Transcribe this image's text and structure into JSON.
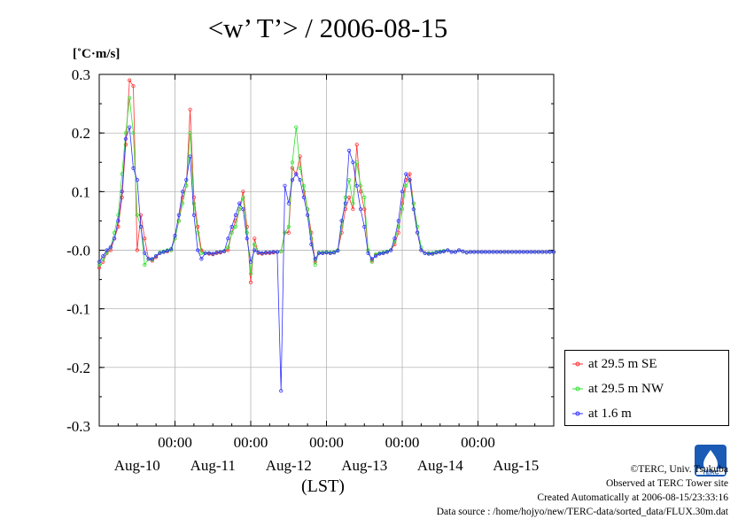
{
  "title": "<w’ T’> / 2006-08-15",
  "unit_label": "[˚C·m/s]",
  "x_unit": "(LST)",
  "credits": {
    "line1": "©TERC, Univ. Tsukuba",
    "line2": "Observed at TERC Tower site",
    "line3": "Created Automatically at 2006-08-15/23:33:16",
    "line4": "Data source : /home/hojyo/new/TERC-data/sorted_data/FLUX.30m.dat"
  },
  "logo": {
    "icon": "terc-logo-icon",
    "text": "TERC"
  },
  "colors": {
    "se": "#ff3030",
    "nw": "#30e030",
    "low": "#3030ff"
  },
  "chart_data": {
    "type": "line",
    "title": "<w’ T’> / 2006-08-15",
    "ylabel": "[˚C·m/s]",
    "xlabel": "(LST)",
    "ylim": [
      -0.3,
      0.3
    ],
    "yticks": [
      "0.3",
      "0.2",
      "0.1",
      "-0.0",
      "-0.1",
      "-0.2",
      "-0.3"
    ],
    "xlim_days": [
      0,
      6
    ],
    "x_hour_labels": [
      "00:00",
      "00:00",
      "00:00",
      "00:00",
      "00:00"
    ],
    "x_date_labels": [
      "Aug-10",
      "Aug-11",
      "Aug-12",
      "Aug-13",
      "Aug-14",
      "Aug-15"
    ],
    "grid": true,
    "legend_position": "right-bottom outside",
    "series": [
      {
        "name": "at 29.5 m SE",
        "color": "#ff3030",
        "x": [
          0,
          0.05,
          0.1,
          0.15,
          0.2,
          0.25,
          0.3,
          0.35,
          0.4,
          0.45,
          0.5,
          0.55,
          0.6,
          0.65,
          0.7,
          0.75,
          0.8,
          0.85,
          0.9,
          0.95,
          1.0,
          1.05,
          1.1,
          1.15,
          1.2,
          1.25,
          1.3,
          1.35,
          1.4,
          1.45,
          1.5,
          1.55,
          1.6,
          1.65,
          1.7,
          1.75,
          1.8,
          1.85,
          1.9,
          1.95,
          2.0,
          2.05,
          2.1,
          2.15,
          2.2,
          2.25,
          2.3,
          2.35,
          2.4,
          2.45,
          2.5,
          2.55,
          2.6,
          2.65,
          2.7,
          2.75,
          2.8,
          2.85,
          2.9,
          2.95,
          3.0,
          3.05,
          3.1,
          3.15,
          3.2,
          3.25,
          3.3,
          3.35,
          3.4,
          3.45,
          3.5,
          3.55,
          3.6,
          3.65,
          3.7,
          3.75,
          3.8,
          3.85,
          3.9,
          3.95,
          4.0,
          4.05,
          4.1,
          4.15,
          4.2,
          4.25,
          4.3,
          4.35,
          4.4,
          4.45,
          4.5,
          4.55,
          4.6,
          4.65,
          4.7,
          4.75,
          4.8,
          4.85,
          4.9,
          4.95,
          5.0,
          5.05,
          5.1,
          5.15,
          5.2,
          5.25,
          5.3,
          5.35,
          5.4,
          5.45,
          5.5,
          5.55,
          5.6,
          5.65,
          5.7,
          5.75,
          5.8,
          5.85,
          5.9,
          5.95,
          6.0
        ],
        "values": [
          -0.03,
          -0.02,
          -0.005,
          0.0,
          0.02,
          0.04,
          0.09,
          0.18,
          0.29,
          0.28,
          0.0,
          0.06,
          0.02,
          -0.015,
          -0.018,
          -0.012,
          -0.005,
          -0.003,
          -0.002,
          0.0,
          0.02,
          0.05,
          0.09,
          0.11,
          0.24,
          0.09,
          0.04,
          0.0,
          -0.005,
          -0.006,
          -0.007,
          -0.005,
          -0.004,
          -0.002,
          0.0,
          0.03,
          0.05,
          0.07,
          0.1,
          0.04,
          -0.055,
          0.02,
          -0.005,
          -0.006,
          -0.005,
          -0.005,
          -0.004,
          -0.003,
          -0.002,
          0.03,
          0.03,
          0.14,
          0.13,
          0.16,
          0.1,
          0.07,
          0.03,
          -0.02,
          -0.005,
          -0.005,
          -0.004,
          -0.005,
          -0.004,
          0.0,
          0.03,
          0.07,
          0.09,
          0.07,
          0.18,
          0.1,
          0.07,
          0.0,
          -0.018,
          -0.008,
          -0.006,
          -0.005,
          -0.003,
          0.0,
          0.01,
          0.03,
          0.08,
          0.12,
          0.13,
          0.08,
          0.03,
          0.0,
          -0.005,
          -0.006,
          -0.006,
          -0.004,
          -0.003,
          -0.002,
          0.0,
          -0.003,
          -0.003,
          0.0,
          -0.002,
          -0.004,
          -0.003,
          -0.003,
          -0.003,
          -0.003,
          -0.003,
          -0.003,
          -0.003,
          -0.003,
          -0.003,
          -0.003,
          -0.003,
          -0.003,
          -0.003,
          -0.003,
          -0.003,
          -0.003,
          -0.003,
          -0.003,
          -0.003,
          -0.003,
          -0.003,
          -0.003,
          -0.003
        ]
      },
      {
        "name": "at 29.5 m NW",
        "color": "#30e030",
        "x": [
          0,
          0.05,
          0.1,
          0.15,
          0.2,
          0.25,
          0.3,
          0.35,
          0.4,
          0.45,
          0.5,
          0.55,
          0.6,
          0.65,
          0.7,
          0.75,
          0.8,
          0.85,
          0.9,
          0.95,
          1.0,
          1.05,
          1.1,
          1.15,
          1.2,
          1.25,
          1.3,
          1.35,
          1.4,
          1.45,
          1.5,
          1.55,
          1.6,
          1.65,
          1.7,
          1.75,
          1.8,
          1.85,
          1.9,
          1.95,
          2.0,
          2.05,
          2.1,
          2.15,
          2.2,
          2.25,
          2.3,
          2.35,
          2.4,
          2.45,
          2.5,
          2.55,
          2.6,
          2.65,
          2.7,
          2.75,
          2.8,
          2.85,
          2.9,
          2.95,
          3.0,
          3.05,
          3.1,
          3.15,
          3.2,
          3.25,
          3.3,
          3.35,
          3.4,
          3.45,
          3.5,
          3.55,
          3.6,
          3.65,
          3.7,
          3.75,
          3.8,
          3.85,
          3.9,
          3.95,
          4.0,
          4.05,
          4.1,
          4.15,
          4.2,
          4.25,
          4.3,
          4.35,
          4.4,
          4.45,
          4.5,
          4.55,
          4.6,
          4.65,
          4.7,
          4.75,
          4.8,
          4.85,
          4.9,
          4.95,
          5.0,
          5.05,
          5.1,
          5.15,
          5.2,
          5.25,
          5.3,
          5.35,
          5.4,
          5.45,
          5.5,
          5.55,
          5.6,
          5.65,
          5.7,
          5.75,
          5.8,
          5.85,
          5.9,
          5.95,
          6.0
        ],
        "values": [
          -0.025,
          -0.015,
          -0.004,
          0.005,
          0.03,
          0.06,
          0.13,
          0.2,
          0.26,
          0.2,
          0.06,
          0.04,
          -0.025,
          -0.015,
          -0.016,
          -0.01,
          -0.004,
          -0.002,
          0.0,
          0.0,
          0.02,
          0.05,
          0.08,
          0.11,
          0.2,
          0.08,
          0.03,
          -0.005,
          -0.005,
          -0.005,
          -0.006,
          -0.004,
          -0.003,
          -0.001,
          0.005,
          0.03,
          0.04,
          0.07,
          0.09,
          0.03,
          -0.04,
          0.01,
          -0.004,
          -0.005,
          -0.004,
          -0.004,
          -0.003,
          -0.003,
          -0.002,
          0.03,
          0.04,
          0.15,
          0.21,
          0.14,
          0.11,
          0.07,
          0.02,
          -0.025,
          -0.004,
          -0.004,
          -0.003,
          -0.004,
          -0.003,
          0.0,
          0.04,
          0.09,
          0.12,
          0.08,
          0.15,
          0.11,
          0.09,
          0.0,
          -0.02,
          -0.007,
          -0.005,
          -0.004,
          -0.002,
          0.0,
          0.015,
          0.04,
          0.07,
          0.11,
          0.12,
          0.08,
          0.04,
          0.005,
          -0.005,
          -0.005,
          -0.005,
          -0.003,
          -0.002,
          -0.001,
          0.0,
          -0.003,
          -0.003,
          0.0,
          -0.002,
          -0.004,
          -0.003,
          -0.003,
          -0.003,
          -0.003,
          -0.003,
          -0.003,
          -0.003,
          -0.003,
          -0.003,
          -0.003,
          -0.003,
          -0.003,
          -0.003,
          -0.003,
          -0.003,
          -0.003,
          -0.003,
          -0.003,
          -0.003,
          -0.003,
          -0.003,
          -0.003,
          -0.003
        ]
      },
      {
        "name": "at 1.6 m",
        "color": "#3030ff",
        "x": [
          0,
          0.05,
          0.1,
          0.15,
          0.2,
          0.25,
          0.3,
          0.35,
          0.4,
          0.45,
          0.5,
          0.55,
          0.6,
          0.65,
          0.7,
          0.75,
          0.8,
          0.85,
          0.9,
          0.95,
          1.0,
          1.05,
          1.1,
          1.15,
          1.2,
          1.25,
          1.3,
          1.35,
          1.4,
          1.45,
          1.5,
          1.55,
          1.6,
          1.65,
          1.7,
          1.75,
          1.8,
          1.85,
          1.9,
          1.95,
          2.0,
          2.05,
          2.1,
          2.15,
          2.2,
          2.25,
          2.3,
          2.35,
          2.4,
          2.45,
          2.5,
          2.55,
          2.6,
          2.65,
          2.7,
          2.75,
          2.8,
          2.85,
          2.9,
          2.95,
          3.0,
          3.05,
          3.1,
          3.15,
          3.2,
          3.25,
          3.3,
          3.35,
          3.4,
          3.45,
          3.5,
          3.55,
          3.6,
          3.65,
          3.7,
          3.75,
          3.8,
          3.85,
          3.9,
          3.95,
          4.0,
          4.05,
          4.1,
          4.15,
          4.2,
          4.25,
          4.3,
          4.35,
          4.4,
          4.45,
          4.5,
          4.55,
          4.6,
          4.65,
          4.7,
          4.75,
          4.8,
          4.85,
          4.9,
          4.95,
          5.0,
          5.05,
          5.1,
          5.15,
          5.2,
          5.25,
          5.3,
          5.35,
          5.4,
          5.45,
          5.5,
          5.55,
          5.6,
          5.65,
          5.7,
          5.75,
          5.8,
          5.85,
          5.9,
          5.95,
          6.0
        ],
        "values": [
          -0.02,
          -0.01,
          0.0,
          0.005,
          0.02,
          0.05,
          0.1,
          0.19,
          0.21,
          0.14,
          0.12,
          0.04,
          -0.005,
          -0.015,
          -0.015,
          -0.01,
          -0.005,
          -0.003,
          -0.001,
          0.002,
          0.025,
          0.06,
          0.1,
          0.12,
          0.16,
          0.06,
          0.0,
          -0.015,
          -0.005,
          -0.005,
          -0.006,
          -0.004,
          -0.003,
          -0.002,
          0.02,
          0.04,
          0.06,
          0.08,
          0.07,
          0.02,
          -0.02,
          0.0,
          -0.004,
          -0.005,
          -0.004,
          -0.004,
          -0.003,
          -0.003,
          -0.24,
          0.11,
          0.08,
          0.12,
          0.13,
          0.12,
          0.09,
          0.06,
          0.01,
          -0.015,
          -0.005,
          -0.005,
          -0.004,
          -0.005,
          -0.004,
          -0.001,
          0.05,
          0.08,
          0.17,
          0.15,
          0.11,
          0.07,
          0.04,
          -0.005,
          -0.015,
          -0.01,
          -0.006,
          -0.005,
          -0.003,
          0.0,
          0.02,
          0.05,
          0.1,
          0.13,
          0.12,
          0.07,
          0.03,
          0.0,
          -0.005,
          -0.006,
          -0.006,
          -0.004,
          -0.003,
          -0.002,
          0.0,
          -0.003,
          -0.003,
          0.0,
          -0.002,
          -0.004,
          -0.003,
          -0.003,
          -0.003,
          -0.003,
          -0.003,
          -0.003,
          -0.003,
          -0.003,
          -0.003,
          -0.003,
          -0.003,
          -0.003,
          -0.003,
          -0.003,
          -0.003,
          -0.003,
          -0.003,
          -0.003,
          -0.003,
          -0.003,
          -0.003,
          -0.003,
          -0.003
        ]
      }
    ]
  }
}
